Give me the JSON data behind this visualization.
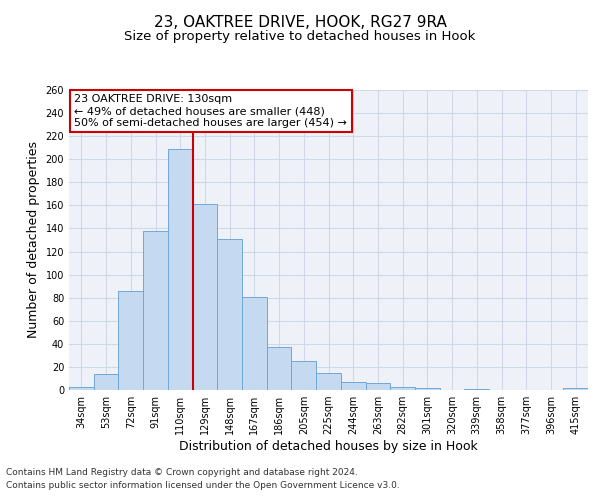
{
  "title1": "23, OAKTREE DRIVE, HOOK, RG27 9RA",
  "title2": "Size of property relative to detached houses in Hook",
  "xlabel": "Distribution of detached houses by size in Hook",
  "ylabel": "Number of detached properties",
  "categories": [
    "34sqm",
    "53sqm",
    "72sqm",
    "91sqm",
    "110sqm",
    "129sqm",
    "148sqm",
    "167sqm",
    "186sqm",
    "205sqm",
    "225sqm",
    "244sqm",
    "263sqm",
    "282sqm",
    "301sqm",
    "320sqm",
    "339sqm",
    "358sqm",
    "377sqm",
    "396sqm",
    "415sqm"
  ],
  "values": [
    3,
    14,
    86,
    138,
    209,
    161,
    131,
    81,
    37,
    25,
    15,
    7,
    6,
    3,
    2,
    0,
    1,
    0,
    0,
    0,
    2
  ],
  "bar_color": "#c5d9f0",
  "bar_edge_color": "#6fa8d8",
  "vline_x_index": 4.5,
  "vline_color": "#cc0000",
  "annotation_text": "23 OAKTREE DRIVE: 130sqm\n← 49% of detached houses are smaller (448)\n50% of semi-detached houses are larger (454) →",
  "annotation_box_color": "#ffffff",
  "annotation_box_edge_color": "#cc0000",
  "ylim": [
    0,
    260
  ],
  "yticks": [
    0,
    20,
    40,
    60,
    80,
    100,
    120,
    140,
    160,
    180,
    200,
    220,
    240,
    260
  ],
  "grid_color": "#d0d8e8",
  "background_color": "#eef2f8",
  "footer1": "Contains HM Land Registry data © Crown copyright and database right 2024.",
  "footer2": "Contains public sector information licensed under the Open Government Licence v3.0.",
  "title_fontsize": 11,
  "subtitle_fontsize": 9.5,
  "tick_fontsize": 7,
  "label_fontsize": 9,
  "annotation_fontsize": 8
}
